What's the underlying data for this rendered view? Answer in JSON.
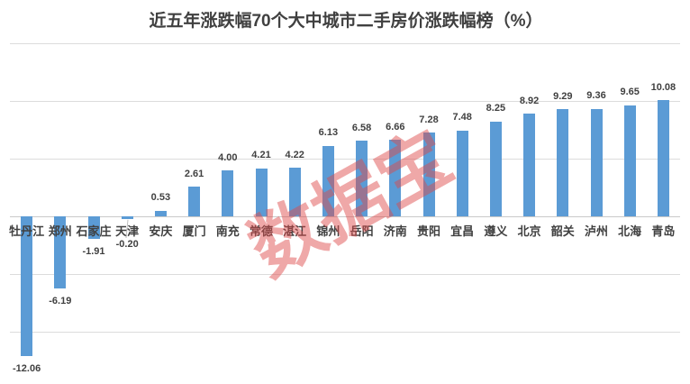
{
  "chart_data": {
    "type": "bar",
    "title": "近五年涨跌幅70个大中城市二手房价涨跌幅榜（%）",
    "categories": [
      "牡丹江",
      "郑州",
      "石家庄",
      "天津",
      "安庆",
      "厦门",
      "南充",
      "常德",
      "湛江",
      "锦州",
      "岳阳",
      "济南",
      "贵阳",
      "宜昌",
      "遵义",
      "北京",
      "韶关",
      "泸州",
      "北海",
      "青岛"
    ],
    "values": [
      -12.06,
      -6.19,
      -1.91,
      -0.2,
      0.53,
      2.61,
      4.0,
      4.21,
      4.22,
      6.13,
      6.58,
      6.66,
      7.28,
      7.48,
      8.25,
      8.92,
      9.29,
      9.36,
      9.65,
      10.08
    ],
    "value_labels": [
      "-12.06",
      "-6.19",
      "-1.91",
      "-0.20",
      "0.53",
      "2.61",
      "4.00",
      "4.21",
      "4.22",
      "6.13",
      "6.58",
      "6.66",
      "7.28",
      "7.48",
      "8.25",
      "8.92",
      "9.29",
      "9.36",
      "9.65",
      "10.08"
    ],
    "xlabel": "",
    "ylabel": "",
    "ylim": [
      -15,
      15
    ],
    "grid_interval": 5,
    "grid": true,
    "legend": false,
    "bar_color": "#5B9BD5",
    "gridline_color": "#DCDCDC",
    "axis_color": "#C9C9C9",
    "label_color": "#404040",
    "watermark": "数据宝",
    "watermark_color": "#DD4A4A"
  }
}
